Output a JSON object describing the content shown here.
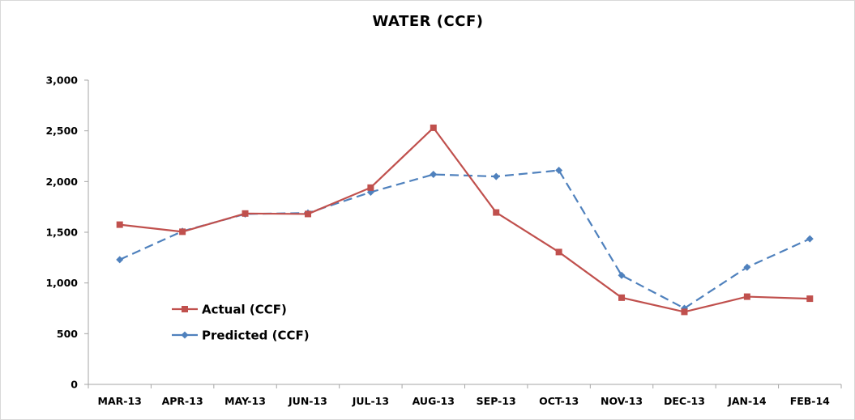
{
  "chart_data": {
    "type": "line",
    "title": "WATER (CCF)",
    "xlabel": "",
    "ylabel": "",
    "categories": [
      "MAR-13",
      "APR-13",
      "MAY-13",
      "JUN-13",
      "JUL-13",
      "AUG-13",
      "SEP-13",
      "OCT-13",
      "NOV-13",
      "DEC-13",
      "JAN-14",
      "FEB-14"
    ],
    "ylim": [
      0,
      3000
    ],
    "yticks": [
      0,
      500,
      1000,
      1500,
      2000,
      2500,
      3000
    ],
    "ytick_labels": [
      "0",
      "500",
      "1,000",
      "1,500",
      "2,000",
      "2,500",
      "3,000"
    ],
    "grid": false,
    "legend_position": "left",
    "series": [
      {
        "name": "Actual (CCF)",
        "color": "#c0504d",
        "marker": "square",
        "line_style": "solid",
        "values": [
          1575,
          1505,
          1685,
          1680,
          1940,
          2530,
          1695,
          1305,
          855,
          715,
          865,
          845
        ]
      },
      {
        "name": "Predicted (CCF)",
        "color": "#4f81bd",
        "marker": "diamond",
        "line_style": "dashed",
        "values": [
          1230,
          1510,
          1680,
          1690,
          1895,
          2070,
          2050,
          2110,
          1075,
          750,
          1155,
          1435
        ]
      }
    ]
  }
}
